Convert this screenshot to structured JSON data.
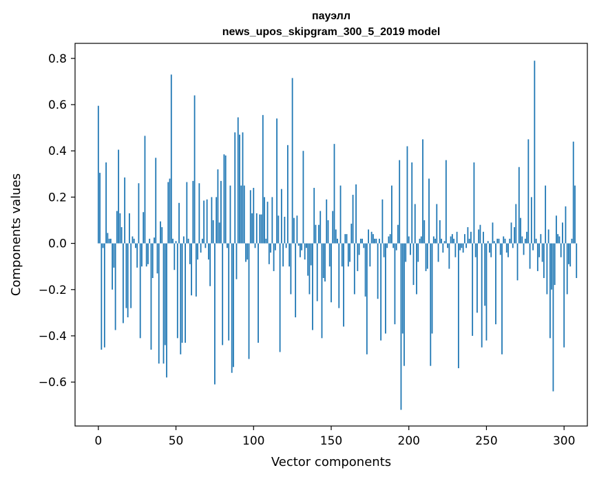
{
  "chart_data": {
    "type": "bar",
    "title_line1": "пауэлл",
    "title_line2": "news_upos_skipgram_300_5_2019 model",
    "xlabel": "Vector components",
    "ylabel": "Components values",
    "xlim": [
      -15,
      315
    ],
    "ylim": [
      -0.79,
      0.865
    ],
    "xticks": [
      0,
      50,
      100,
      150,
      200,
      250,
      300
    ],
    "yticks": [
      -0.6,
      -0.4,
      -0.2,
      0.0,
      0.2,
      0.4,
      0.6,
      0.8
    ],
    "ytick_labels": [
      "−0.6",
      "−0.4",
      "−0.2",
      "0.0",
      "0.2",
      "0.4",
      "0.6",
      "0.8"
    ],
    "bar_color": "#1f77b4",
    "grid": false,
    "values": [
      0.595,
      0.305,
      -0.46,
      -0.02,
      -0.45,
      0.35,
      0.045,
      0.02,
      0.02,
      -0.2,
      -0.105,
      -0.375,
      0.14,
      0.405,
      0.13,
      0.07,
      -0.345,
      0.285,
      -0.28,
      -0.32,
      0.13,
      -0.28,
      0.03,
      0.02,
      -0.02,
      -0.105,
      0.26,
      -0.41,
      -0.1,
      0.135,
      0.465,
      -0.1,
      -0.09,
      0.02,
      -0.46,
      -0.15,
      0.025,
      0.37,
      -0.13,
      -0.52,
      0.095,
      0.07,
      -0.52,
      -0.44,
      -0.58,
      0.265,
      0.28,
      0.73,
      0.02,
      -0.115,
      0.01,
      -0.41,
      0.175,
      -0.48,
      -0.43,
      0.03,
      -0.43,
      0.265,
      0.02,
      -0.09,
      -0.225,
      0.27,
      0.64,
      -0.23,
      -0.07,
      0.26,
      -0.04,
      0.02,
      0.185,
      -0.02,
      0.19,
      -0.07,
      -0.185,
      0.2,
      0.1,
      -0.61,
      0.2,
      0.32,
      0.09,
      0.27,
      -0.44,
      0.385,
      0.38,
      -0.02,
      -0.42,
      0.25,
      -0.56,
      -0.535,
      0.48,
      -0.155,
      0.545,
      0.47,
      0.25,
      0.48,
      0.25,
      -0.08,
      -0.07,
      -0.5,
      0.23,
      0.13,
      0.24,
      -0.02,
      0.13,
      -0.43,
      0.125,
      0.125,
      0.555,
      0.2,
      0.02,
      0.18,
      -0.09,
      -0.04,
      0.2,
      -0.12,
      -0.03,
      0.54,
      0.12,
      -0.47,
      0.235,
      -0.1,
      0.115,
      -0.02,
      0.425,
      -0.1,
      -0.22,
      0.715,
      0.11,
      -0.32,
      0.12,
      -0.01,
      -0.06,
      -0.03,
      0.4,
      -0.07,
      -0.02,
      -0.14,
      -0.22,
      -0.095,
      -0.375,
      0.24,
      0.08,
      -0.25,
      0.08,
      0.14,
      -0.41,
      -0.15,
      -0.165,
      0.19,
      0.1,
      -0.1,
      -0.255,
      0.14,
      0.43,
      0.06,
      0.02,
      -0.28,
      0.25,
      -0.1,
      -0.36,
      0.04,
      0.04,
      -0.1,
      -0.08,
      0.085,
      0.21,
      -0.22,
      0.255,
      -0.12,
      -0.05,
      0.02,
      0.02,
      -0.02,
      -0.23,
      -0.48,
      0.06,
      -0.1,
      0.05,
      0.04,
      0.02,
      0.02,
      -0.24,
      0.02,
      -0.42,
      0.19,
      -0.06,
      -0.39,
      -0.02,
      0.03,
      0.04,
      0.25,
      -0.02,
      -0.35,
      -0.03,
      0.08,
      0.36,
      -0.72,
      -0.39,
      -0.53,
      -0.08,
      0.42,
      0.03,
      -0.05,
      0.35,
      -0.18,
      0.17,
      -0.22,
      -0.08,
      0.02,
      0.03,
      0.45,
      0.1,
      -0.12,
      -0.11,
      0.28,
      -0.53,
      -0.39,
      0.03,
      0.02,
      0.17,
      -0.08,
      0.1,
      0.02,
      -0.04,
      0.01,
      0.36,
      -0.02,
      -0.11,
      0.03,
      0.04,
      0.02,
      -0.06,
      0.05,
      -0.54,
      -0.03,
      -0.02,
      -0.04,
      0.04,
      -0.02,
      0.07,
      0.02,
      0.05,
      -0.4,
      0.35,
      -0.06,
      -0.3,
      0.06,
      0.08,
      -0.45,
      0.05,
      -0.27,
      -0.42,
      0.01,
      -0.04,
      -0.06,
      0.09,
      0.01,
      -0.35,
      0.02,
      0.02,
      -0.05,
      -0.48,
      0.03,
      0.02,
      -0.04,
      -0.06,
      0.02,
      0.09,
      -0.02,
      0.07,
      0.17,
      -0.16,
      0.33,
      0.11,
      0.03,
      -0.05,
      0.02,
      0.05,
      0.45,
      -0.11,
      0.2,
      -0.03,
      0.79,
      0.02,
      -0.12,
      -0.06,
      0.04,
      -0.08,
      -0.15,
      0.25,
      -0.22,
      0.06,
      -0.41,
      -0.2,
      -0.64,
      -0.18,
      0.12,
      0.04,
      0.03,
      -0.06,
      0.09,
      -0.45,
      0.16,
      -0.22,
      -0.09,
      -0.1,
      0.02,
      0.44,
      0.25,
      -0.15
    ]
  }
}
